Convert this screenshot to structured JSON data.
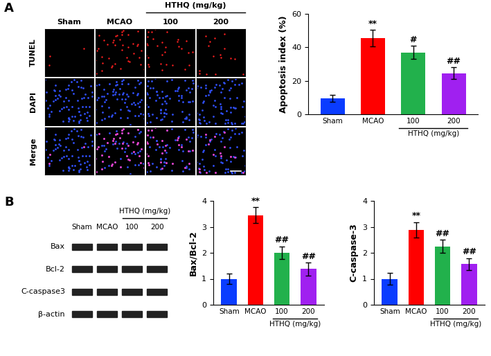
{
  "panel_labels": [
    "A",
    "B"
  ],
  "microscopy": {
    "columns": [
      "Sham",
      "MCAO",
      "100",
      "200"
    ],
    "group_label": {
      "text": "HTHQ (mg/kg)",
      "categories": [
        "100",
        "200"
      ]
    },
    "rows": [
      "TUNEL",
      "DAPI",
      "Merge"
    ]
  },
  "western_blot": {
    "columns": [
      "Sham",
      "MCAO",
      "100",
      "200"
    ],
    "group_label": {
      "text": "HTHQ (mg/kg)",
      "categories": [
        "100",
        "200"
      ]
    },
    "rows": [
      "Bax",
      "Bcl-2",
      "C-caspase3",
      "β-actin"
    ]
  },
  "chart_data": [
    {
      "type": "bar",
      "y_label": "Apoptosis index (%)",
      "categories": [
        "Sham",
        "MCAO",
        "100",
        "200"
      ],
      "values": [
        9.5,
        45.5,
        37,
        24.5
      ],
      "errors": [
        2,
        5,
        4,
        3.5
      ],
      "significance": [
        null,
        "**",
        "#",
        "##"
      ],
      "colors": [
        "#0a3cff",
        "#ff0000",
        "#22b14c",
        "#a020f0"
      ],
      "group_label": {
        "text": "HTHQ (mg/kg)",
        "categories": [
          "100",
          "200"
        ]
      },
      "ylim": [
        0,
        60
      ],
      "yticks": [
        0,
        20,
        40,
        60
      ]
    },
    {
      "type": "bar",
      "y_label": "Bax/Bcl-2",
      "categories": [
        "Sham",
        "MCAO",
        "100",
        "200"
      ],
      "values": [
        1.0,
        3.45,
        2.0,
        1.38
      ],
      "errors": [
        0.2,
        0.3,
        0.25,
        0.25
      ],
      "significance": [
        null,
        "**",
        "##",
        "##"
      ],
      "colors": [
        "#0a3cff",
        "#ff0000",
        "#22b14c",
        "#a020f0"
      ],
      "group_label": {
        "text": "HTHQ (mg/kg)",
        "categories": [
          "100",
          "200"
        ]
      },
      "ylim": [
        0,
        4
      ],
      "yticks": [
        0,
        1,
        2,
        3,
        4
      ]
    },
    {
      "type": "bar",
      "y_label": "C-caspase-3",
      "categories": [
        "Sham",
        "MCAO",
        "100",
        "200"
      ],
      "values": [
        1.0,
        2.88,
        2.25,
        1.57
      ],
      "errors": [
        0.22,
        0.3,
        0.25,
        0.23
      ],
      "significance": [
        null,
        "**",
        "##",
        "##"
      ],
      "colors": [
        "#0a3cff",
        "#ff0000",
        "#22b14c",
        "#a020f0"
      ],
      "group_label": {
        "text": "HTHQ (mg/kg)",
        "categories": [
          "100",
          "200"
        ]
      },
      "ylim": [
        0,
        4
      ],
      "yticks": [
        0,
        1,
        2,
        3,
        4
      ]
    }
  ]
}
